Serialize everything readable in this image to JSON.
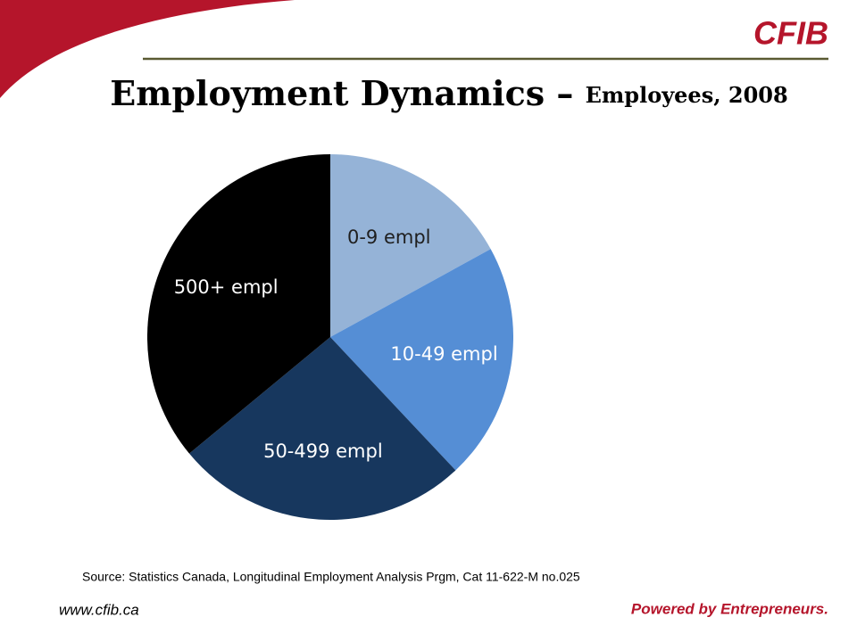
{
  "chart_data": {
    "type": "pie",
    "title": "Employment Dynamics – ",
    "subtitle": "Employees, 2008",
    "categories": [
      "0-9 empl",
      "10-49 empl",
      "50-499 empl",
      "500+ empl"
    ],
    "values": [
      17,
      21,
      26,
      36
    ],
    "colors": [
      "#95b3d7",
      "#558ed5",
      "#17375e",
      "#000000"
    ],
    "label_colors": [
      "#1f1f1f",
      "#ffffff",
      "#ffffff",
      "#ffffff"
    ]
  },
  "logo": "CFIB",
  "source": "Source: Statistics Canada, Longitudinal Employment Analysis Prgm, Cat 11-622-M no.025",
  "url": "www.cfib.ca",
  "tagline": "Powered by Entrepreneurs."
}
